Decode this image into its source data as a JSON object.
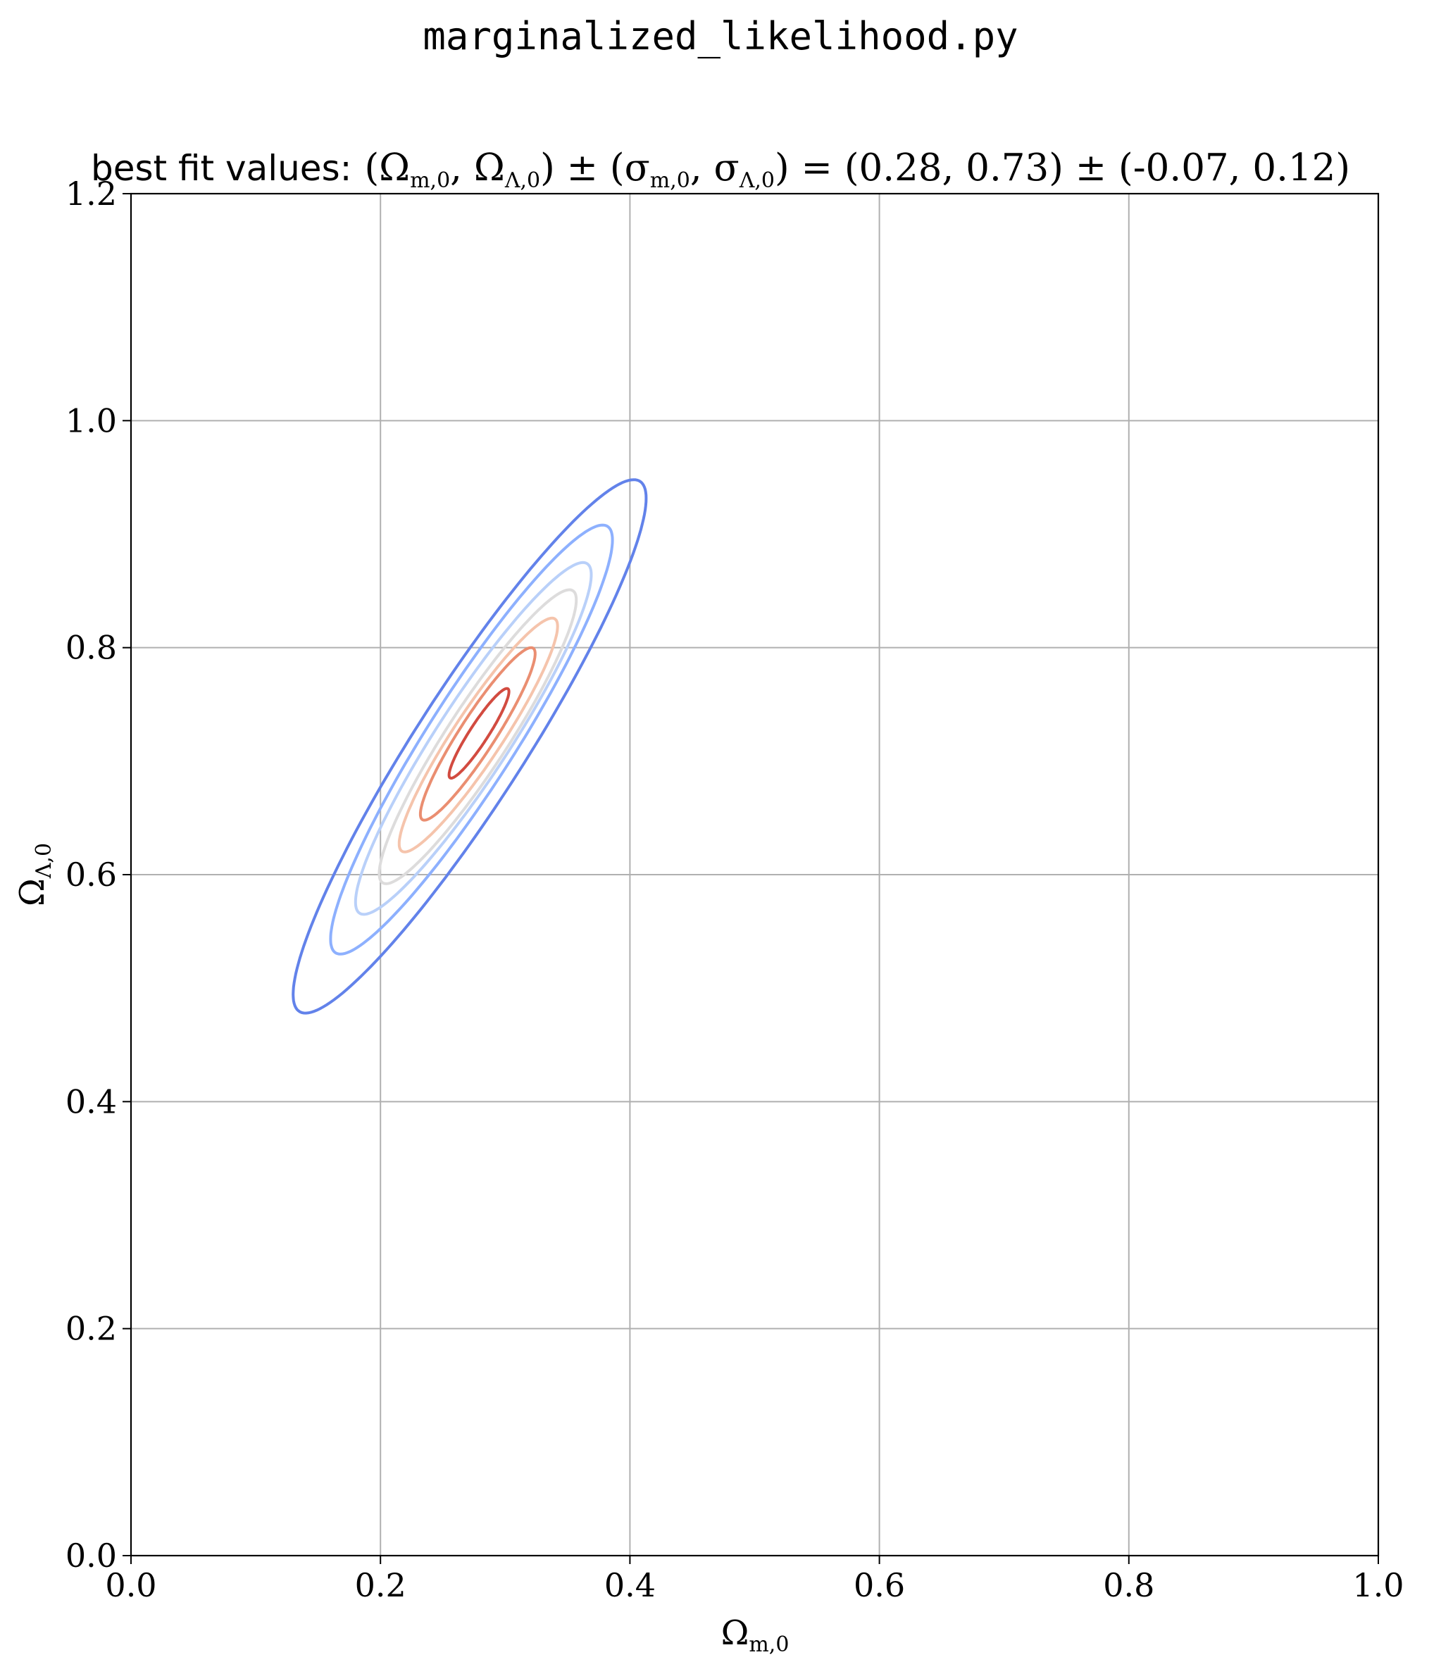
{
  "figure": {
    "suptitle": "marginalized_likelihood.py"
  },
  "chart_data": {
    "type": "contour",
    "title_prefix": "best fit values:",
    "title_math": {
      "lhs_params": "(Ω_{m,0}, Ω_{Λ,0})",
      "pm": "±",
      "lhs_sigmas": "(σ_{m,0}, σ_{Λ,0})",
      "equals": "=",
      "best_fit": [
        0.28,
        0.73
      ],
      "sigmas": [
        -0.07,
        0.12
      ]
    },
    "xlabel": "Ω_{m,0}",
    "ylabel": "Ω_{Λ,0}",
    "xlim": [
      0.0,
      1.0
    ],
    "ylim": [
      0.0,
      1.2
    ],
    "xticks": [
      "0.0",
      "0.2",
      "0.4",
      "0.6",
      "0.8",
      "1.0"
    ],
    "yticks": [
      "0.0",
      "0.2",
      "0.4",
      "0.6",
      "0.8",
      "1.0",
      "1.2"
    ],
    "grid": true,
    "colormap": "coolwarm",
    "center": [
      0.28,
      0.725
    ],
    "contours": [
      {
        "color": "#6282ea",
        "xrange": [
          0.13,
          0.413
        ],
        "yrange": [
          0.478,
          0.948
        ]
      },
      {
        "color": "#8db0fe",
        "xrange": [
          0.16,
          0.386
        ],
        "yrange": [
          0.53,
          0.908
        ]
      },
      {
        "color": "#b9d0f9",
        "xrange": [
          0.18,
          0.369
        ],
        "yrange": [
          0.565,
          0.875
        ]
      },
      {
        "color": "#dddcdc",
        "xrange": [
          0.199,
          0.357
        ],
        "yrange": [
          0.592,
          0.851
        ]
      },
      {
        "color": "#f5c4ac",
        "xrange": [
          0.215,
          0.342
        ],
        "yrange": [
          0.62,
          0.826
        ]
      },
      {
        "color": "#ea8e71",
        "xrange": [
          0.232,
          0.324
        ],
        "yrange": [
          0.648,
          0.8
        ]
      },
      {
        "color": "#d24b40",
        "xrange": [
          0.255,
          0.303
        ],
        "yrange": [
          0.685,
          0.764
        ]
      }
    ]
  }
}
